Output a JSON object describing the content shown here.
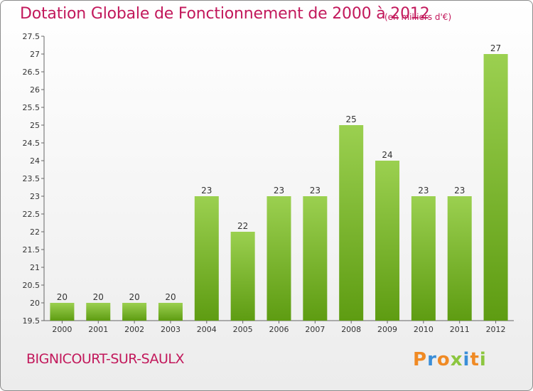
{
  "header": {
    "title": "Dotation Globale de Fonctionnement de 2000 à 2012",
    "unit": "(en milliers d'€)"
  },
  "footer": {
    "commune": "BIGNICOURT-SUR-SAULX",
    "logo": "Proxiti"
  },
  "colors": {
    "title": "#c2185b",
    "bar_top": "#9bd050",
    "bar_bottom": "#5e9c12",
    "logo_letters": [
      "#f08a24",
      "#3a8ed8",
      "#f08a24",
      "#8cc63f",
      "#3a8ed8",
      "#f08a24",
      "#8cc63f"
    ]
  },
  "chart_data": {
    "type": "bar",
    "title": "Dotation Globale de Fonctionnement de 2000 à 2012",
    "subtitle": "(en milliers d'€)",
    "categories": [
      "2000",
      "2001",
      "2002",
      "2003",
      "2004",
      "2005",
      "2006",
      "2007",
      "2008",
      "2009",
      "2010",
      "2011",
      "2012"
    ],
    "values": [
      20,
      20,
      20,
      20,
      23,
      22,
      23,
      23,
      25,
      24,
      23,
      23,
      27
    ],
    "ylim": [
      19.5,
      27.5
    ],
    "yticks": [
      "19.5",
      "20",
      "20.5",
      "21",
      "21.5",
      "22",
      "22.5",
      "23",
      "23.5",
      "24",
      "24.5",
      "25",
      "25.5",
      "26",
      "26.5",
      "27",
      "27.5"
    ],
    "grid": false,
    "xlabel": "",
    "ylabel": ""
  }
}
